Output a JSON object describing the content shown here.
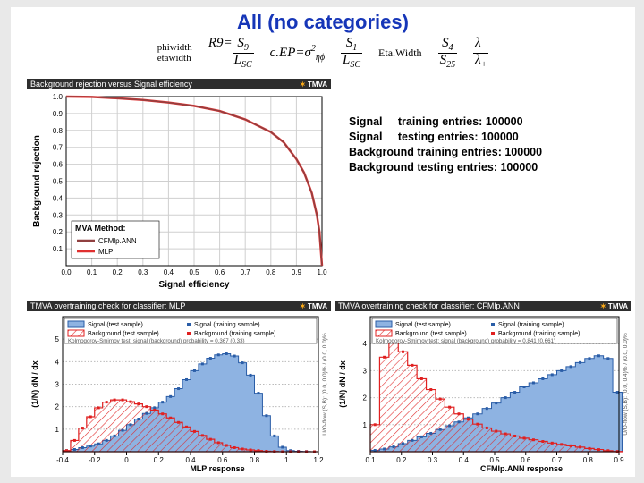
{
  "title": "All (no categories)",
  "formulas": {
    "pair1": {
      "top": "phiwidth",
      "bottom": "etawidth"
    },
    "r9": {
      "label": "R9=",
      "num": "S₉",
      "den": "L_{SC}"
    },
    "cep": "c.EP=σ²_{ηϕ}",
    "frac1": {
      "num": "S₁",
      "den": "L_{SC}"
    },
    "etawidth": "Eta.Width",
    "frac2": {
      "num": "S₄",
      "den": "S₂₅"
    },
    "lambda": {
      "num": "λ₋",
      "den": "λ₊"
    }
  },
  "entries": [
    [
      "Signal",
      "training entries:",
      "100000"
    ],
    [
      "Signal",
      "testing  entries:",
      "100000"
    ],
    [
      "Background training entries:",
      "",
      "100000"
    ],
    [
      "Background testing  entries:",
      "",
      "100000"
    ]
  ],
  "roc": {
    "banner": "Background rejection versus Signal efficiency",
    "xlabel": "Signal efficiency",
    "ylabel": "Background rejection",
    "xlim": [
      0,
      1
    ],
    "ylim": [
      0,
      1
    ],
    "tick": 0.1,
    "legend_title": "MVA Method:",
    "legend": [
      {
        "label": "CFMlp.ANN",
        "color": "#904040"
      },
      {
        "label": "MLP",
        "color": "#e03030"
      }
    ],
    "curve_color": "#e43535",
    "curve": [
      [
        0.0,
        1.0
      ],
      [
        0.1,
        0.998
      ],
      [
        0.2,
        0.99
      ],
      [
        0.3,
        0.98
      ],
      [
        0.4,
        0.965
      ],
      [
        0.5,
        0.945
      ],
      [
        0.6,
        0.915
      ],
      [
        0.7,
        0.865
      ],
      [
        0.8,
        0.79
      ],
      [
        0.85,
        0.73
      ],
      [
        0.9,
        0.63
      ],
      [
        0.93,
        0.55
      ],
      [
        0.96,
        0.43
      ],
      [
        0.98,
        0.3
      ],
      [
        0.99,
        0.2
      ],
      [
        1.0,
        0.0
      ]
    ],
    "grid_color": "#cfcfcf",
    "frame_color": "#000"
  },
  "mlp": {
    "banner": "TMVA overtraining check for classifier: MLP",
    "xlabel": "MLP response",
    "ylabel": "(1/N) dN / dx",
    "xlim": [
      -0.4,
      1.2
    ],
    "xticks": [
      -0.4,
      -0.2,
      0,
      0.2,
      0.4,
      0.6,
      0.8,
      1,
      1.2
    ],
    "ylim": [
      0,
      6
    ],
    "yticks": [
      1,
      2,
      3,
      4,
      5
    ],
    "legend": [
      {
        "kind": "box",
        "label": "Signal (test sample)",
        "fill": "#7ea7d9",
        "stroke": "#2b5aa0"
      },
      {
        "kind": "hatch",
        "label": "Background (test sample)",
        "stroke": "#e02020"
      },
      {
        "kind": "dot",
        "label": "Signal (training sample)",
        "color": "#2b5aa0"
      },
      {
        "kind": "dot",
        "label": "Background (training sample)",
        "color": "#e02020"
      }
    ],
    "ks_text": "Kolmogorov-Smirnov test: signal (background) probability = 0.367 (0.33)",
    "right_text": "U/O-flow (S,B): (0.0, 0.0)% / (0.0, 0.0)%",
    "signal_fill": "#8eb3e2",
    "signal_stroke": "#2a5da7",
    "bkg_stroke": "#e02020",
    "signal_hist": [
      [
        -0.4,
        0.05
      ],
      [
        -0.35,
        0.1
      ],
      [
        -0.3,
        0.18
      ],
      [
        -0.25,
        0.25
      ],
      [
        -0.2,
        0.35
      ],
      [
        -0.15,
        0.5
      ],
      [
        -0.1,
        0.7
      ],
      [
        -0.05,
        0.95
      ],
      [
        0.0,
        1.2
      ],
      [
        0.05,
        1.45
      ],
      [
        0.1,
        1.7
      ],
      [
        0.15,
        1.95
      ],
      [
        0.2,
        2.2
      ],
      [
        0.25,
        2.45
      ],
      [
        0.3,
        2.8
      ],
      [
        0.35,
        3.2
      ],
      [
        0.4,
        3.6
      ],
      [
        0.45,
        3.9
      ],
      [
        0.5,
        4.15
      ],
      [
        0.55,
        4.3
      ],
      [
        0.6,
        4.35
      ],
      [
        0.65,
        4.25
      ],
      [
        0.7,
        3.95
      ],
      [
        0.75,
        3.4
      ],
      [
        0.8,
        2.6
      ],
      [
        0.85,
        1.6
      ],
      [
        0.9,
        0.7
      ],
      [
        0.95,
        0.2
      ],
      [
        1.0,
        0.05
      ],
      [
        1.05,
        0.02
      ],
      [
        1.1,
        0.01
      ],
      [
        1.15,
        0
      ]
    ],
    "bkg_hist": [
      [
        -0.4,
        0.05
      ],
      [
        -0.35,
        0.5
      ],
      [
        -0.3,
        1.05
      ],
      [
        -0.25,
        1.55
      ],
      [
        -0.2,
        1.95
      ],
      [
        -0.15,
        2.2
      ],
      [
        -0.1,
        2.3
      ],
      [
        -0.05,
        2.3
      ],
      [
        0.0,
        2.22
      ],
      [
        0.05,
        2.12
      ],
      [
        0.1,
        2.0
      ],
      [
        0.15,
        1.85
      ],
      [
        0.2,
        1.68
      ],
      [
        0.25,
        1.5
      ],
      [
        0.3,
        1.3
      ],
      [
        0.35,
        1.1
      ],
      [
        0.4,
        0.9
      ],
      [
        0.45,
        0.72
      ],
      [
        0.5,
        0.55
      ],
      [
        0.55,
        0.4
      ],
      [
        0.6,
        0.28
      ],
      [
        0.65,
        0.18
      ],
      [
        0.7,
        0.12
      ],
      [
        0.75,
        0.08
      ],
      [
        0.8,
        0.05
      ],
      [
        0.85,
        0.02
      ],
      [
        0.9,
        0.01
      ],
      [
        0.95,
        0
      ],
      [
        1.0,
        0
      ],
      [
        1.05,
        0
      ],
      [
        1.1,
        0
      ],
      [
        1.15,
        0
      ]
    ]
  },
  "cfmlp": {
    "banner": "TMVA overtraining check for classifier: CFMlp.ANN",
    "xlabel": "CFMlp.ANN response",
    "ylabel": "(1/N) dN / dx",
    "xlim": [
      0.1,
      0.9
    ],
    "xticks": [
      0.1,
      0.2,
      0.3,
      0.4,
      0.5,
      0.6,
      0.7,
      0.8,
      0.9
    ],
    "ylim": [
      0,
      5
    ],
    "yticks": [
      1,
      2,
      3,
      4
    ],
    "legend": [
      {
        "kind": "box",
        "label": "Signal (test sample)",
        "fill": "#7ea7d9",
        "stroke": "#2b5aa0"
      },
      {
        "kind": "hatch",
        "label": "Background (test sample)",
        "stroke": "#e02020"
      },
      {
        "kind": "dot",
        "label": "Signal (training sample)",
        "color": "#2b5aa0"
      },
      {
        "kind": "dot",
        "label": "Background (training sample)",
        "color": "#e02020"
      }
    ],
    "ks_text": "Kolmogorov-Smirnov test: signal (background) probability = 0.841 (0.661)",
    "right_text": "U/O-flow (S,B): (0.0, 0.4)% / (0.0, 0.0)%",
    "signal_fill": "#8eb3e2",
    "signal_stroke": "#2a5da7",
    "bkg_stroke": "#e02020",
    "signal_hist": [
      [
        0.1,
        0.05
      ],
      [
        0.13,
        0.1
      ],
      [
        0.16,
        0.18
      ],
      [
        0.19,
        0.3
      ],
      [
        0.22,
        0.42
      ],
      [
        0.25,
        0.55
      ],
      [
        0.28,
        0.68
      ],
      [
        0.31,
        0.82
      ],
      [
        0.34,
        0.96
      ],
      [
        0.37,
        1.1
      ],
      [
        0.4,
        1.25
      ],
      [
        0.43,
        1.4
      ],
      [
        0.46,
        1.6
      ],
      [
        0.49,
        1.8
      ],
      [
        0.52,
        2.0
      ],
      [
        0.55,
        2.2
      ],
      [
        0.58,
        2.4
      ],
      [
        0.61,
        2.55
      ],
      [
        0.64,
        2.7
      ],
      [
        0.67,
        2.85
      ],
      [
        0.7,
        3.0
      ],
      [
        0.73,
        3.15
      ],
      [
        0.76,
        3.3
      ],
      [
        0.79,
        3.45
      ],
      [
        0.82,
        3.55
      ],
      [
        0.85,
        3.45
      ],
      [
        0.88,
        2.2
      ]
    ],
    "bkg_hist": [
      [
        0.1,
        1.0
      ],
      [
        0.13,
        3.5
      ],
      [
        0.16,
        4.05
      ],
      [
        0.19,
        3.7
      ],
      [
        0.22,
        3.2
      ],
      [
        0.25,
        2.7
      ],
      [
        0.28,
        2.3
      ],
      [
        0.31,
        1.95
      ],
      [
        0.34,
        1.65
      ],
      [
        0.37,
        1.4
      ],
      [
        0.4,
        1.2
      ],
      [
        0.43,
        1.02
      ],
      [
        0.46,
        0.88
      ],
      [
        0.49,
        0.76
      ],
      [
        0.52,
        0.66
      ],
      [
        0.55,
        0.58
      ],
      [
        0.58,
        0.5
      ],
      [
        0.61,
        0.44
      ],
      [
        0.64,
        0.38
      ],
      [
        0.67,
        0.32
      ],
      [
        0.7,
        0.27
      ],
      [
        0.73,
        0.22
      ],
      [
        0.76,
        0.17
      ],
      [
        0.79,
        0.12
      ],
      [
        0.82,
        0.08
      ],
      [
        0.85,
        0.04
      ],
      [
        0.88,
        0.01
      ]
    ]
  }
}
